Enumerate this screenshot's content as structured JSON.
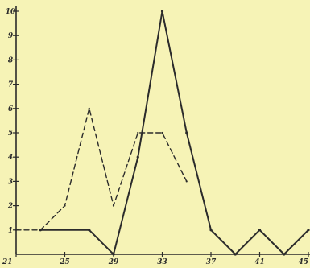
{
  "chart_data": {
    "type": "line",
    "title": "",
    "xlabel": "",
    "ylabel": "",
    "xlim": [
      21,
      45
    ],
    "ylim": [
      0,
      10
    ],
    "x_ticks": [
      21,
      25,
      29,
      33,
      37,
      41,
      45
    ],
    "y_ticks": [
      1,
      2,
      3,
      4,
      5,
      6,
      7,
      8,
      9,
      10
    ],
    "grid": false,
    "legend": "none",
    "colors": {
      "background": "#f6f3b6",
      "ink": "#2b2b2b"
    },
    "series": [
      {
        "style": "solid",
        "points": [
          [
            23,
            1
          ],
          [
            27,
            1
          ],
          [
            29,
            0
          ],
          [
            31,
            4
          ],
          [
            33,
            10
          ],
          [
            35,
            5
          ],
          [
            37,
            1
          ],
          [
            39,
            0
          ],
          [
            41,
            1
          ],
          [
            43,
            0
          ],
          [
            45,
            1
          ]
        ]
      },
      {
        "style": "dashed",
        "points": [
          [
            21,
            1
          ],
          [
            23,
            1
          ],
          [
            25,
            2
          ],
          [
            27,
            6
          ],
          [
            29,
            2
          ],
          [
            31,
            5
          ],
          [
            33,
            5
          ],
          [
            35,
            3
          ]
        ]
      }
    ]
  }
}
